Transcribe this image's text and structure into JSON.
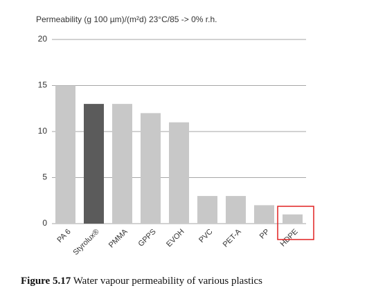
{
  "chart_data": {
    "type": "bar",
    "title": "Permeability (g 100 µm)/(m²d) 23°C/85 -> 0% r.h.",
    "categories": [
      "PA 6",
      "Styrolux®",
      "PMMA",
      "GPPS",
      "EVOH",
      "PVC",
      "PET-A",
      "PP",
      "HDPE"
    ],
    "values": [
      15,
      13,
      13,
      12,
      11,
      3,
      3,
      2,
      1
    ],
    "colors": [
      "#c8c8c8",
      "#5b5b5b",
      "#c8c8c8",
      "#c8c8c8",
      "#c8c8c8",
      "#c8c8c8",
      "#c8c8c8",
      "#c8c8c8",
      "#c8c8c8"
    ],
    "ylim": [
      0,
      20
    ],
    "yticks": [
      0,
      5,
      10,
      15,
      20
    ],
    "grid": true
  },
  "caption": {
    "label": "Figure 5.17",
    "text": "Water vapour permeability of various plastics"
  }
}
